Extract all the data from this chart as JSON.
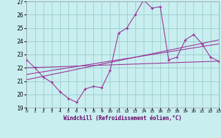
{
  "xlabel": "Windchill (Refroidissement éolien,°C)",
  "xlim": [
    0,
    23
  ],
  "ylim": [
    19,
    27
  ],
  "yticks": [
    19,
    20,
    21,
    22,
    23,
    24,
    25,
    26,
    27
  ],
  "xticks": [
    0,
    1,
    2,
    3,
    4,
    5,
    6,
    7,
    8,
    9,
    10,
    11,
    12,
    13,
    14,
    15,
    16,
    17,
    18,
    19,
    20,
    21,
    22,
    23
  ],
  "bg_color": "#c8eef0",
  "grid_color": "#99cccc",
  "line_color": "#993399",
  "curve_x": [
    0,
    1,
    2,
    3,
    4,
    5,
    6,
    7,
    8,
    9,
    10,
    11,
    12,
    13,
    14,
    15,
    16,
    17,
    18,
    19,
    20,
    21,
    22,
    23
  ],
  "curve_y": [
    22.6,
    22.0,
    21.3,
    20.9,
    20.2,
    19.7,
    19.4,
    20.4,
    20.6,
    20.5,
    21.8,
    24.6,
    25.0,
    26.0,
    27.1,
    26.5,
    26.6,
    22.6,
    22.8,
    24.1,
    24.5,
    23.8,
    22.8,
    22.5
  ],
  "trend1_x": [
    0,
    23
  ],
  "trend1_y": [
    22.0,
    22.5
  ],
  "trend2_x": [
    0,
    23
  ],
  "trend2_y": [
    21.5,
    23.8
  ],
  "trend3_x": [
    0,
    23
  ],
  "trend3_y": [
    21.1,
    24.1
  ]
}
